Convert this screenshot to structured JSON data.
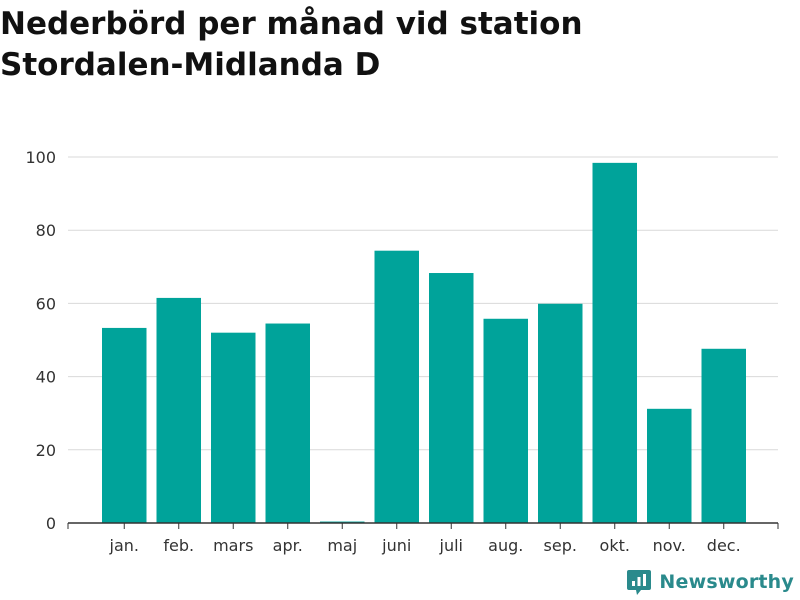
{
  "chart_data": {
    "type": "bar",
    "title_lines": [
      "Nederbörd per månad vid station",
      "Stordalen-Midlanda D"
    ],
    "categories": [
      "jan.",
      "feb.",
      "mars",
      "apr.",
      "maj",
      "juni",
      "juli",
      "aug.",
      "sep.",
      "okt.",
      "nov.",
      "dec."
    ],
    "values": [
      53.3,
      61.5,
      52.0,
      54.5,
      0.4,
      74.4,
      68.3,
      55.8,
      59.9,
      98.4,
      31.2,
      47.6
    ],
    "ylim": [
      0,
      100
    ],
    "yticks": [
      0,
      20,
      40,
      60,
      80,
      100
    ],
    "grid": true,
    "bar_color": "#00a39a",
    "grid_color": "#d9d9d9",
    "axis_color": "#333333"
  },
  "brand": {
    "name": "Newsworthy",
    "icon": "newsworthy-logo-icon",
    "color": "#2a8a8c"
  }
}
